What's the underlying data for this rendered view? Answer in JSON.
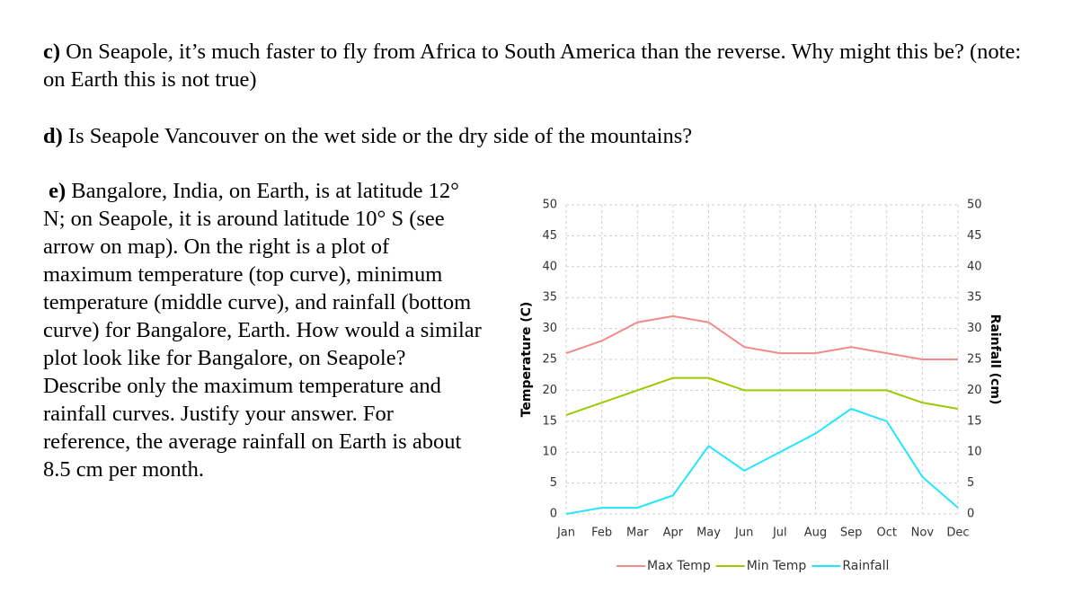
{
  "questions": [
    {
      "label": "c)",
      "text": "On Seapole, it’s much faster to fly from Africa to South America than the reverse. Why might this be? (note: on Earth this is not true)"
    },
    {
      "label": "d)",
      "text": "Is Seapole Vancouver on the wet side or the dry side of the mountains?"
    },
    {
      "label": "e)",
      "text": "Bangalore, India, on Earth, is at latitude 12° N; on Seapole, it is around latitude 10° S (see arrow on map). On the right is a plot of maximum temperature (top curve), minimum temperature (middle curve), and rainfall (bottom curve) for Bangalore, Earth. How would a similar plot look like for Bangalore, on Seapole? Describe only the maximum temperature and rainfall curves. Justify your answer. For reference, the average rainfall on Earth is about 8.5 cm per month."
    }
  ],
  "chart_data": {
    "type": "line",
    "categories": [
      "Jan",
      "Feb",
      "Mar",
      "Apr",
      "May",
      "Jun",
      "Jul",
      "Aug",
      "Sep",
      "Oct",
      "Nov",
      "Dec"
    ],
    "series": [
      {
        "name": "Max Temp",
        "color": "#f28a8a",
        "values": [
          26,
          28,
          31,
          32,
          31,
          27,
          26,
          26,
          27,
          26,
          25,
          25
        ]
      },
      {
        "name": "Min Temp",
        "color": "#99cc00",
        "values": [
          16,
          18,
          20,
          22,
          22,
          20,
          20,
          20,
          20,
          20,
          18,
          17
        ]
      },
      {
        "name": "Rainfall",
        "color": "#22e6ff",
        "axis": "y2",
        "values": [
          0,
          1,
          1,
          3,
          11,
          7,
          10,
          13,
          17,
          15,
          6,
          1
        ]
      }
    ],
    "y_label": "Temperature (C)",
    "y2_label": "Rainfall (cm)",
    "ylim": [
      0,
      50
    ],
    "yticks": [
      0,
      5,
      10,
      15,
      20,
      25,
      30,
      35,
      40,
      45,
      50
    ],
    "y2lim": [
      0,
      50
    ],
    "y2ticks": [
      0,
      5,
      10,
      15,
      20,
      25,
      30,
      35,
      40,
      45,
      50
    ],
    "grid": true,
    "legend": "bottom"
  }
}
